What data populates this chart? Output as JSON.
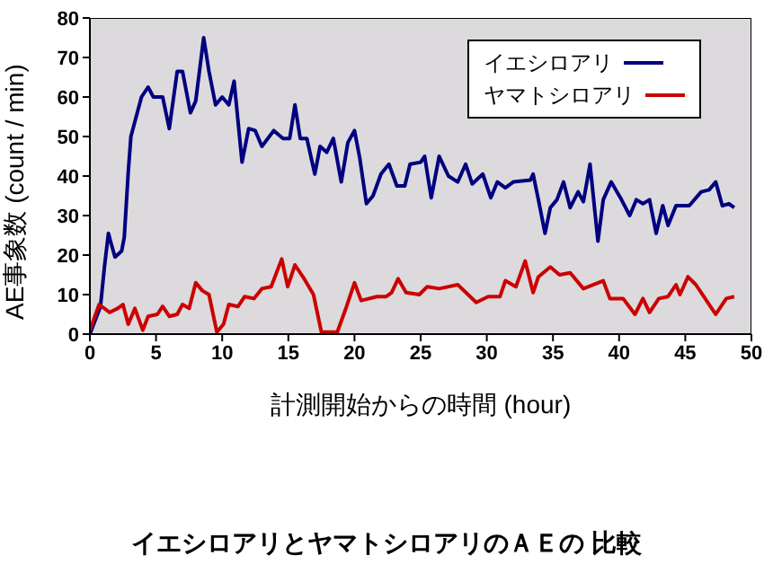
{
  "chart_data": {
    "type": "line",
    "title": "イエシロアリとヤマトシロアリのＡＥの 比較",
    "xlabel": "計測開始からの時間  (hour)",
    "ylabel": "AE事象数  (count / min)",
    "xlim": [
      0,
      50
    ],
    "xticks": [
      0,
      5,
      10,
      15,
      20,
      25,
      30,
      35,
      40,
      45,
      50
    ],
    "ylim": [
      0,
      80
    ],
    "yticks": [
      0,
      10,
      20,
      30,
      40,
      50,
      60,
      70,
      80
    ],
    "legend": "top right",
    "marker": "none",
    "line_style": "solid",
    "series": [
      {
        "name": "イエシロアリ",
        "color": "#000080",
        "x": [
          0,
          0.8,
          1.1,
          1.4,
          1.6,
          1.9,
          2.4,
          2.6,
          2.9,
          3.1,
          3.5,
          3.9,
          4.4,
          4.8,
          5.5,
          6.0,
          6.6,
          7.0,
          7.6,
          8.0,
          8.6,
          9.0,
          9.5,
          10.0,
          10.5,
          10.9,
          11.5,
          12.0,
          12.5,
          13.0,
          13.9,
          14.6,
          15.1,
          15.5,
          15.9,
          16.4,
          17.0,
          17.4,
          17.9,
          18.4,
          19.0,
          19.5,
          20.0,
          20.4,
          20.9,
          21.4,
          22.0,
          22.6,
          23.2,
          23.8,
          24.2,
          25.0,
          25.3,
          25.8,
          26.4,
          27.1,
          27.8,
          28.4,
          28.9,
          29.7,
          30.3,
          30.8,
          31.4,
          32.0,
          33.3,
          33.5,
          33.9,
          34.4,
          34.8,
          35.3,
          35.8,
          36.3,
          36.9,
          37.3,
          37.8,
          38.4,
          38.8,
          39.4,
          40.1,
          40.8,
          41.3,
          41.8,
          42.3,
          42.8,
          43.3,
          43.7,
          44.3,
          45.3,
          46.2,
          46.8,
          47.3,
          47.8,
          48.3,
          48.7
        ],
        "values": [
          0,
          7,
          17,
          25.5,
          23,
          19.5,
          21,
          24.5,
          41,
          50,
          55,
          60,
          62.5,
          60,
          60,
          52,
          66.5,
          66.5,
          56,
          59,
          75,
          66.5,
          58,
          60,
          58,
          64,
          43.5,
          52,
          51.5,
          47.5,
          51.5,
          49.5,
          49.5,
          58,
          49.5,
          49.5,
          40.5,
          47.5,
          46,
          49.5,
          38.5,
          48.5,
          51.5,
          44.5,
          33,
          35,
          40.5,
          43,
          37.5,
          37.5,
          43,
          43.5,
          45,
          34.5,
          45,
          40,
          38.5,
          43,
          38,
          40.5,
          34.5,
          38.5,
          37,
          38.5,
          39,
          40.5,
          34,
          25.5,
          32,
          34,
          38.5,
          32,
          36,
          33.5,
          43,
          23.5,
          34,
          38.5,
          34.5,
          30,
          34,
          33,
          34,
          25.5,
          32.5,
          27.5,
          32.5,
          32.5,
          36,
          36.5,
          38.5,
          32.5,
          33,
          32
        ]
      },
      {
        "name": "ヤマトシロアリ",
        "color": "#cc0000",
        "x": [
          0,
          0.7,
          1.5,
          2.1,
          2.5,
          2.9,
          3.4,
          4.0,
          4.4,
          5.1,
          5.5,
          6.0,
          6.6,
          7.0,
          7.5,
          8.0,
          8.5,
          9.0,
          9.6,
          10.1,
          10.5,
          11.2,
          11.7,
          12.4,
          13.0,
          13.7,
          14.5,
          14.95,
          15.5,
          16.2,
          16.9,
          17.5,
          18.7,
          19.4,
          20.0,
          20.5,
          21.7,
          22.4,
          22.8,
          23.3,
          23.9,
          24.9,
          25.5,
          26.4,
          27.8,
          29.2,
          30.1,
          31.0,
          31.4,
          32.2,
          32.9,
          33.5,
          33.9,
          34.8,
          35.5,
          36.3,
          37.3,
          38.8,
          39.3,
          40.3,
          41.2,
          41.8,
          42.3,
          43.0,
          43.7,
          44.3,
          44.6,
          45.2,
          45.8,
          46.4,
          47.3,
          48.1,
          48.7
        ],
        "values": [
          1,
          7.5,
          5.5,
          6.5,
          7.5,
          2.5,
          6.5,
          1,
          4.5,
          5,
          7,
          4.5,
          5,
          7.5,
          6.5,
          13,
          11,
          10,
          0.5,
          2.5,
          7.5,
          7,
          9.5,
          9,
          11.5,
          12,
          19,
          12,
          17.5,
          14,
          10,
          0.5,
          0.5,
          7,
          13,
          8.5,
          9.5,
          9.5,
          10.5,
          14,
          10.5,
          10,
          12,
          11.5,
          12.5,
          8,
          9.5,
          9.5,
          13.5,
          12,
          18.5,
          10.5,
          14.5,
          17,
          15,
          15.5,
          11.5,
          13.5,
          9,
          9,
          5,
          9,
          5.5,
          9,
          9.5,
          12.5,
          10,
          14.5,
          12.5,
          9.5,
          5,
          9,
          9.5
        ]
      }
    ]
  }
}
